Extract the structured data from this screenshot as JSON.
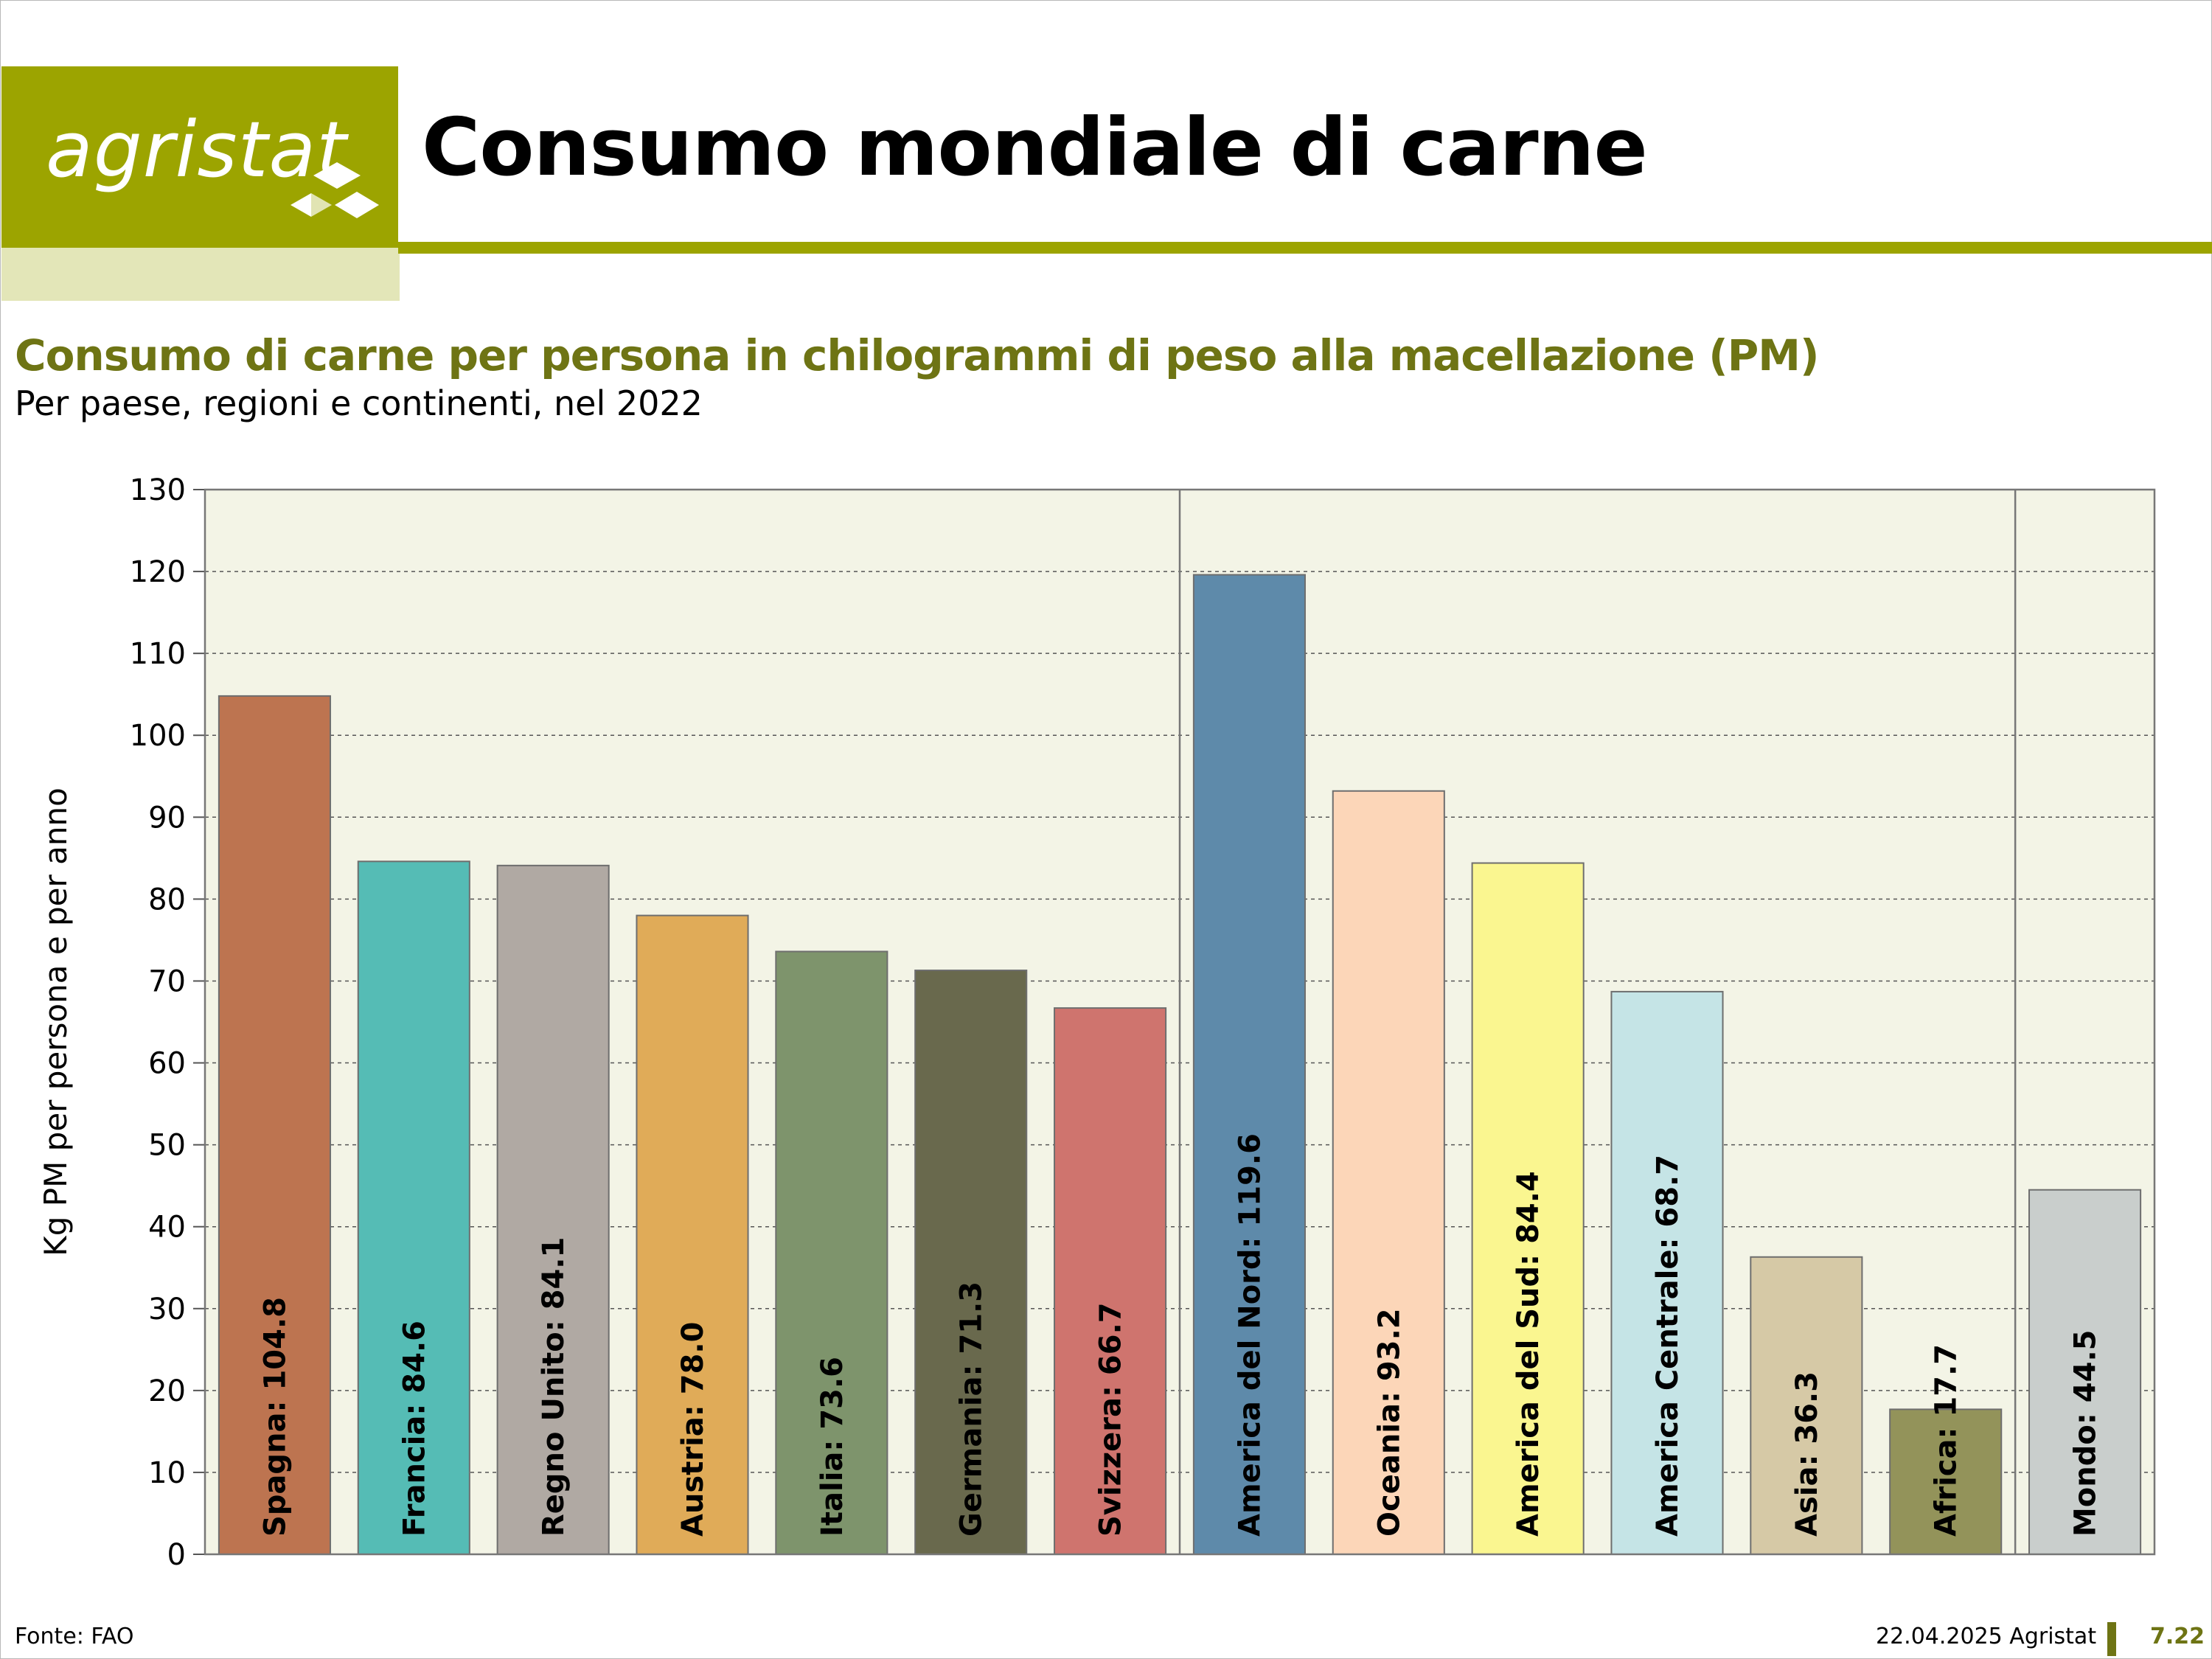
{
  "header": {
    "logo_text": "agristat",
    "title": "Consumo mondiale di carne"
  },
  "colors": {
    "brand": "#9ca400",
    "brand_light": "#e3e6b8",
    "subtitle": "#6e7414",
    "plot_bg": "#f3f4e6"
  },
  "chart_data": {
    "type": "bar",
    "title": "Consumo di carne per persona in chilogrammi di peso alla macellazione (PM)",
    "subtitle": "Per paese, regioni e continenti, nel 2022",
    "ylabel": "Kg PM per persona e per anno",
    "xlabel": "",
    "ylim": [
      0,
      130
    ],
    "yticks": [
      0,
      10,
      20,
      30,
      40,
      50,
      60,
      70,
      80,
      90,
      100,
      110,
      120,
      130
    ],
    "grid": true,
    "categories": [
      "Spagna",
      "Francia",
      "Regno Unito",
      "Austria",
      "Italia",
      "Germania",
      "Svizzera",
      "America del Nord",
      "Oceania",
      "America del Sud",
      "America Centrale",
      "Asia",
      "Africa",
      "Mondo"
    ],
    "values": [
      104.8,
      84.6,
      84.1,
      78.0,
      73.6,
      71.3,
      66.7,
      119.6,
      93.2,
      84.4,
      68.7,
      36.3,
      17.7,
      44.5
    ],
    "labels": [
      "Spagna: 104.8",
      "Francia: 84.6",
      "Regno Unito: 84.1",
      "Austria: 78.0",
      "Italia: 73.6",
      "Germania: 71.3",
      "Svizzera: 66.7",
      "America del Nord: 119.6",
      "Oceania: 93.2",
      "America del Sud: 84.4",
      "America Centrale: 68.7",
      "Asia: 36.3",
      "Africa: 17.7",
      "Mondo: 44.5"
    ],
    "colors": [
      "#bd7450",
      "#55bcb5",
      "#b0a9a3",
      "#e0ab58",
      "#7e946c",
      "#69694d",
      "#cf746e",
      "#5e8aaa",
      "#fcd6b8",
      "#faf690",
      "#c5e4e6",
      "#d6c9a6",
      "#93935a",
      "#c9cecc"
    ],
    "groups": [
      {
        "type": "Paesi",
        "count": 7
      },
      {
        "type": "Continenti",
        "count": 6
      },
      {
        "type": "Mondo",
        "count": 1
      }
    ]
  },
  "footer": {
    "source": "Fonte: FAO",
    "date": "22.04.2025 Agristat",
    "page": "7.22"
  }
}
